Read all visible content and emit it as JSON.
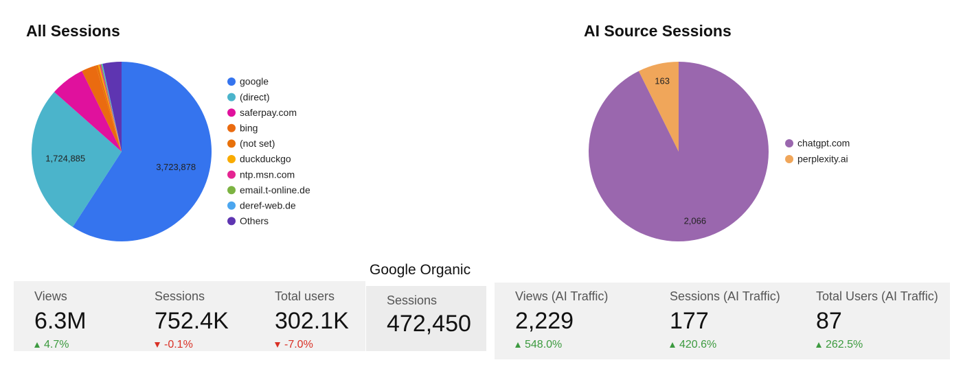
{
  "chart_data": [
    {
      "type": "pie",
      "title": "All Sessions",
      "categories": [
        "google",
        "(direct)",
        "saferpay.com",
        "bing",
        "(not set)",
        "duckduckgo",
        "ntp.msn.com",
        "email.t-online.de",
        "deref-web.de",
        "Others"
      ],
      "values": [
        3723878,
        1724885,
        390000,
        166000,
        26000,
        17000,
        14000,
        12000,
        10000,
        213000
      ],
      "value_labels": [
        "3,723,878",
        "1,724,885",
        null,
        null,
        null,
        null,
        null,
        null,
        null,
        null
      ],
      "colors": [
        "#3574ee",
        "#4bb4cb",
        "#e0119d",
        "#ea6b10",
        "#e8710a",
        "#f9ab00",
        "#e52592",
        "#7cb342",
        "#4ba6ef",
        "#5e35b1"
      ],
      "legend": "right"
    },
    {
      "type": "pie",
      "title": "AI Source Sessions",
      "categories": [
        "chatgpt.com",
        "perplexity.ai"
      ],
      "values": [
        2066,
        163
      ],
      "value_labels": [
        "2,066",
        "163"
      ],
      "colors": [
        "#9a67ae",
        "#f0a65a"
      ],
      "legend": "right"
    }
  ],
  "scorecards": {
    "overall": [
      {
        "label": "Views",
        "value": "6.3M",
        "delta": "4.7%",
        "trend": "up"
      },
      {
        "label": "Sessions",
        "value": "752.4K",
        "delta": "-0.1%",
        "trend": "down"
      },
      {
        "label": "Total users",
        "value": "302.1K",
        "delta": "-7.0%",
        "trend": "down"
      }
    ],
    "google_organic": {
      "title": "Google Organic",
      "label": "Sessions",
      "value": "472,450"
    },
    "ai": [
      {
        "label": "Views (AI Traffic)",
        "value": "2,229",
        "delta": "548.0%",
        "trend": "up"
      },
      {
        "label": "Sessions (AI Traffic)",
        "value": "177",
        "delta": "420.6%",
        "trend": "up"
      },
      {
        "label": "Total Users (AI Traffic)",
        "value": "87",
        "delta": "262.5%",
        "trend": "up"
      }
    ]
  }
}
